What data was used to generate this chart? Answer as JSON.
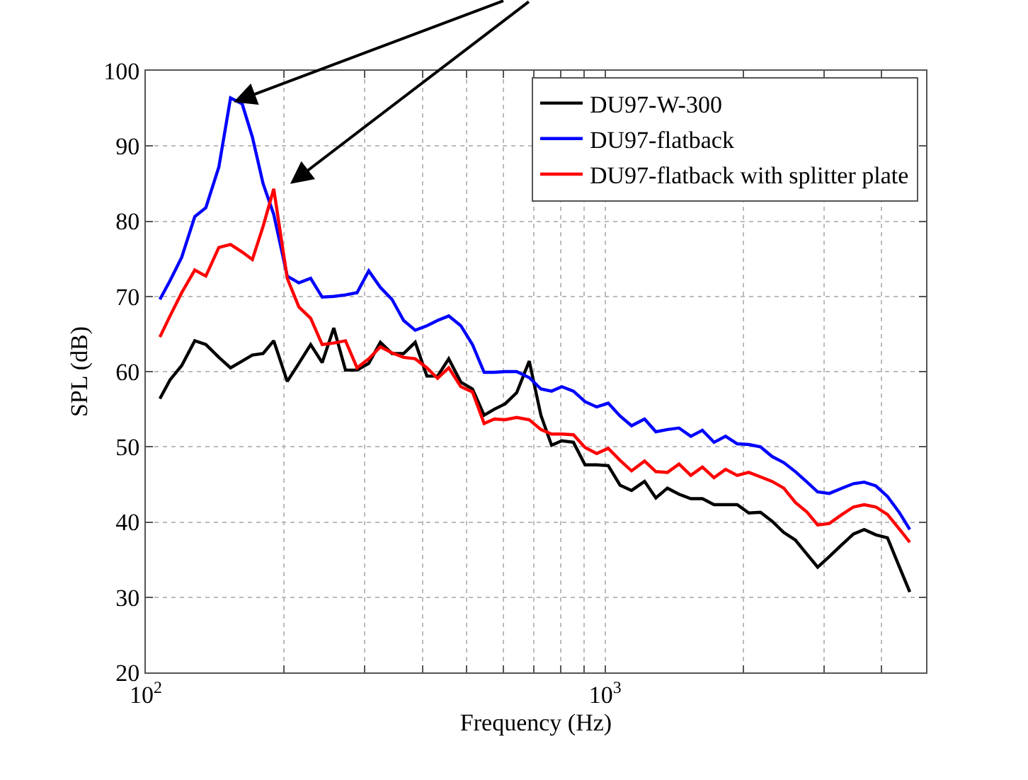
{
  "chart_data": {
    "type": "line",
    "xlabel": "Frequency (Hz)",
    "ylabel": "SPL (dB)",
    "x": [
      107.3,
      112.9,
      119.7,
      127.8,
      135.1,
      144.2,
      152.9,
      162.1,
      170.6,
      180.0,
      189.9,
      203.2,
      215.4,
      228.5,
      242.1,
      256.6,
      272.1,
      288.4,
      305.8,
      324.1,
      343.6,
      364.2,
      386.0,
      409.3,
      431.8,
      456.6,
      485.2,
      514.3,
      545.3,
      574.0,
      605.6,
      642.0,
      683.8,
      724.9,
      764.8,
      805.0,
      853.3,
      904.5,
      958.9,
      1016,
      1078,
      1142,
      1219,
      1290,
      1367,
      1449,
      1537,
      1629,
      1727,
      1830,
      1940,
      2056,
      2180,
      2311,
      2450,
      2597,
      2753,
      2904,
      3078,
      3280,
      3475,
      3667,
      3888,
      4121,
      4369,
      4609
    ],
    "series": [
      {
        "name": "DU97-W-300",
        "color": "#000000",
        "values": [
          56.4,
          58.9,
          60.8,
          64.1,
          63.6,
          61.9,
          60.5,
          61.4,
          62.2,
          62.4,
          64.1,
          58.7,
          61.1,
          63.6,
          61.2,
          65.8,
          60.2,
          60.2,
          61.1,
          63.9,
          62.4,
          62.4,
          63.9,
          59.4,
          59.4,
          61.7,
          58.6,
          57.7,
          54.2,
          55.0,
          55.7,
          57.2,
          61.4,
          54.2,
          50.2,
          50.8,
          50.6,
          47.6,
          47.6,
          47.5,
          44.9,
          44.2,
          45.4,
          43.2,
          44.5,
          43.7,
          43.1,
          43.1,
          42.3,
          42.3,
          42.3,
          41.2,
          41.3,
          40.1,
          38.6,
          37.6,
          35.7,
          34.0,
          35.4,
          37.0,
          38.4,
          39.0,
          38.3,
          37.9,
          34.1,
          30.7
        ]
      },
      {
        "name": "DU97-flatback",
        "color": "#0000ff",
        "values": [
          69.6,
          72.1,
          75.2,
          80.6,
          81.8,
          87.2,
          96.4,
          95.6,
          91.2,
          85.0,
          80.9,
          72.7,
          71.8,
          72.4,
          69.9,
          70.0,
          70.2,
          70.5,
          73.4,
          71.2,
          69.6,
          66.8,
          65.5,
          66.1,
          66.8,
          67.4,
          66.1,
          63.6,
          59.9,
          59.9,
          60.0,
          60.0,
          59.2,
          57.7,
          57.4,
          58.0,
          57.4,
          56.0,
          55.3,
          55.8,
          54.1,
          52.8,
          53.7,
          52.0,
          52.3,
          52.5,
          51.4,
          52.2,
          50.6,
          51.4,
          50.4,
          50.3,
          50.0,
          48.7,
          47.9,
          46.7,
          45.3,
          44.0,
          43.8,
          44.5,
          45.1,
          45.3,
          44.8,
          43.4,
          41.3,
          39.0
        ]
      },
      {
        "name": "DU97-flatback with splitter plate",
        "color": "#ff0000",
        "values": [
          64.6,
          67.4,
          70.5,
          73.5,
          72.7,
          76.5,
          76.9,
          75.9,
          74.9,
          79.3,
          84.3,
          72.4,
          68.6,
          67.1,
          63.6,
          63.8,
          64.1,
          60.5,
          61.7,
          63.3,
          62.5,
          61.9,
          61.7,
          60.5,
          59.1,
          60.5,
          58.0,
          57.3,
          53.1,
          53.7,
          53.6,
          53.9,
          53.6,
          52.3,
          51.7,
          51.7,
          51.6,
          49.9,
          49.1,
          49.8,
          48.2,
          46.8,
          48.1,
          46.7,
          46.6,
          47.7,
          46.2,
          47.3,
          45.9,
          47.0,
          46.2,
          46.6,
          46.0,
          45.4,
          44.5,
          42.6,
          41.3,
          39.6,
          39.8,
          41.0,
          42.0,
          42.3,
          42.0,
          41.0,
          39.1,
          37.3
        ]
      }
    ],
    "log": "x",
    "xlim": [
      100,
      5000
    ],
    "xticks": [
      {
        "value": 100,
        "label": "10$^{2}$"
      },
      {
        "value": 200,
        "label": null
      },
      {
        "value": 300,
        "label": null
      },
      {
        "value": 400,
        "label": null
      },
      {
        "value": 500,
        "label": null
      },
      {
        "value": 600,
        "label": null
      },
      {
        "value": 700,
        "label": null
      },
      {
        "value": 800,
        "label": null
      },
      {
        "value": 900,
        "label": null
      },
      {
        "value": 1000,
        "label": "10$^{3}$"
      },
      {
        "value": 2000,
        "label": null
      },
      {
        "value": 3000,
        "label": null
      },
      {
        "value": 4000,
        "label": null
      }
    ],
    "ylim": [
      20,
      100
    ],
    "yticks": [
      20,
      30,
      40,
      50,
      60,
      70,
      80,
      90,
      100
    ],
    "grid": true,
    "legend": "top right",
    "line_style": "solid",
    "marker": "none"
  }
}
